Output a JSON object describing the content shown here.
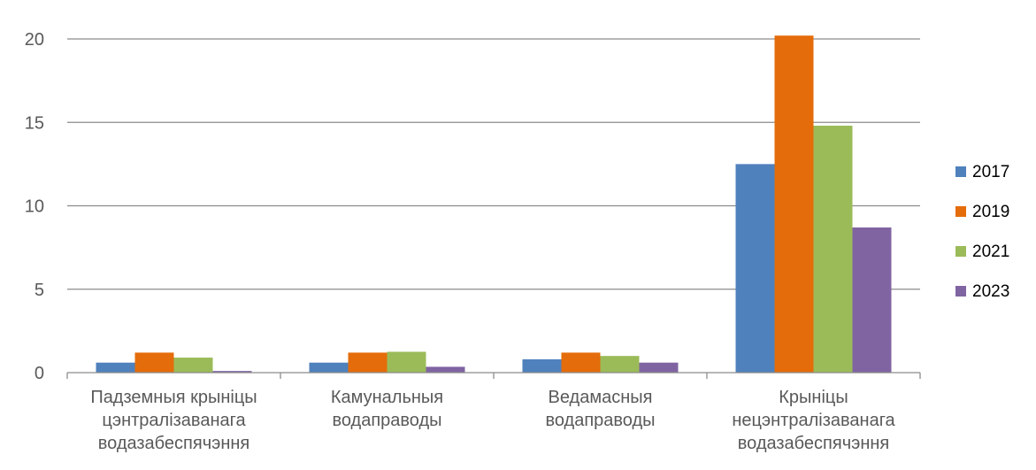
{
  "chart_data": {
    "type": "bar",
    "title": "",
    "xlabel": "",
    "ylabel": "",
    "ylim": [
      0,
      20
    ],
    "yticks": [
      0,
      5,
      10,
      15,
      20
    ],
    "grid": true,
    "legend_position": "right",
    "categories": [
      [
        "Падземныя крыніцы",
        "цэнтралізаванага",
        "водазабеспячэння"
      ],
      [
        "Камунальныя",
        "водаправоды"
      ],
      [
        "Ведамасныя",
        "водаправоды"
      ],
      [
        "Крыніцы",
        "нецэнтралізаванага",
        "водазабеспячэння"
      ]
    ],
    "series": [
      {
        "name": "2017",
        "color": "#4f81bd",
        "values": [
          0.6,
          0.6,
          0.8,
          12.5
        ]
      },
      {
        "name": "2019",
        "color": "#e46c0a",
        "values": [
          1.2,
          1.2,
          1.2,
          20.2
        ]
      },
      {
        "name": "2021",
        "color": "#9bbb59",
        "values": [
          0.9,
          1.25,
          1.0,
          14.8
        ]
      },
      {
        "name": "2023",
        "color": "#8064a2",
        "values": [
          0.1,
          0.35,
          0.6,
          8.7
        ]
      }
    ]
  }
}
